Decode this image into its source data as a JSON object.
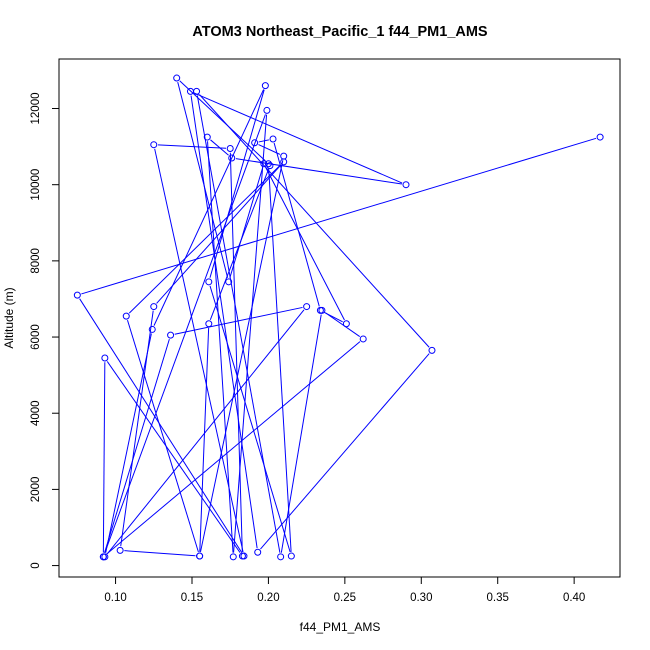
{
  "chart_data": {
    "type": "scatter",
    "title": "ATOM3 Northeast_Pacific_1 f44_PM1_AMS",
    "xlabel": "f44_PM1_AMS",
    "ylabel": "Altitude (m)",
    "xlim": [
      0.063,
      0.43
    ],
    "ylim": [
      -300,
      13300
    ],
    "xticks": [
      0.1,
      0.15,
      0.2,
      0.25,
      0.3,
      0.35,
      0.4
    ],
    "xtick_labels": [
      "0.10",
      "0.15",
      "0.20",
      "0.25",
      "0.30",
      "0.35",
      "0.40"
    ],
    "yticks": [
      0,
      2000,
      4000,
      6000,
      8000,
      10000,
      12000
    ],
    "ytick_labels": [
      "0",
      "2000",
      "4000",
      "6000",
      "8000",
      "10000",
      "12000"
    ],
    "grid": false,
    "series_color": "#0000ff",
    "points": [
      [
        0.417,
        11250
      ],
      [
        0.075,
        7100
      ],
      [
        0.184,
        250
      ],
      [
        0.125,
        11050
      ],
      [
        0.175,
        10950
      ],
      [
        0.183,
        250
      ],
      [
        0.093,
        5450
      ],
      [
        0.092,
        230
      ],
      [
        0.199,
        11950
      ],
      [
        0.177,
        230
      ],
      [
        0.16,
        11250
      ],
      [
        0.176,
        10700
      ],
      [
        0.29,
        10000
      ],
      [
        0.149,
        12450
      ],
      [
        0.193,
        350
      ],
      [
        0.307,
        5650
      ],
      [
        0.153,
        12450
      ],
      [
        0.208,
        230
      ],
      [
        0.235,
        6700
      ],
      [
        0.262,
        5950
      ],
      [
        0.092,
        230
      ],
      [
        0.136,
        6050
      ],
      [
        0.225,
        6800
      ],
      [
        0.093,
        230
      ],
      [
        0.124,
        6200
      ],
      [
        0.198,
        12600
      ],
      [
        0.161,
        7450
      ],
      [
        0.215,
        250
      ],
      [
        0.2,
        10550
      ],
      [
        0.14,
        12800
      ],
      [
        0.174,
        7450
      ],
      [
        0.197,
        10550
      ],
      [
        0.251,
        6350
      ],
      [
        0.234,
        6700
      ],
      [
        0.203,
        11200
      ],
      [
        0.191,
        11100
      ],
      [
        0.21,
        10750
      ],
      [
        0.155,
        250
      ],
      [
        0.103,
        400
      ],
      [
        0.125,
        6800
      ],
      [
        0.21,
        10600
      ],
      [
        0.107,
        6550
      ],
      [
        0.155,
        250
      ],
      [
        0.161,
        6350
      ],
      [
        0.201,
        10500
      ]
    ]
  }
}
